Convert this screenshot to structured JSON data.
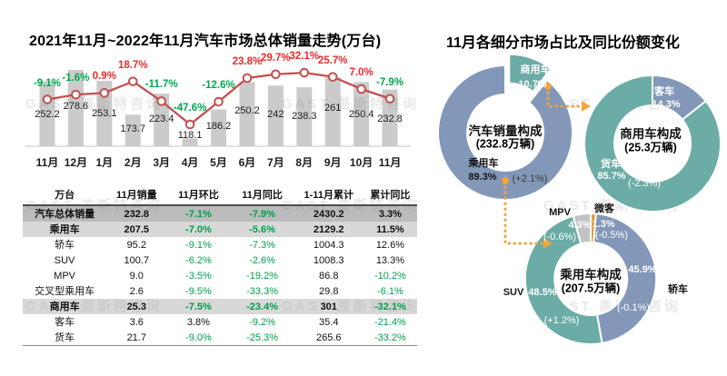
{
  "watermark": {
    "text": "GAST 盖斯特咨询"
  },
  "right_panel": {
    "title": "11月各细分市场占比及同比份额变化"
  },
  "colors": {
    "bar": "#CBCBCB",
    "line": "#C4504E",
    "pos": "#EA2B2B",
    "neg": "#00A84F",
    "table_green": "#00A04A",
    "table_text": "#111111",
    "blue": "#8397B8",
    "teal": "#6BACA6",
    "gray": "#C3C3C3",
    "orange": "#DFA13C",
    "arrow": "#F2A43C",
    "red_text": "#E00000",
    "axis": "#C5C5C5"
  },
  "chart_data": [
    {
      "type": "bar",
      "title": "2021年11月~2022年11月汽车市场总体销量走势(万台)",
      "categories": [
        "11月",
        "12月",
        "1月",
        "2月",
        "3月",
        "4月",
        "5月",
        "6月",
        "7月",
        "8月",
        "9月",
        "10月",
        "11月"
      ],
      "series": [
        {
          "name": "月度销量(万台)",
          "type": "bar",
          "values": [
            252.2,
            278.6,
            253.1,
            173.7,
            223.4,
            118.1,
            186.2,
            250.2,
            242,
            238.3,
            261,
            250.4,
            232.8
          ],
          "labels": [
            "252.2",
            "278.6",
            "253.1",
            "173.7",
            "223.4",
            "118.1",
            "186.2",
            "250.2",
            "242",
            "238.3",
            "261",
            "250.4",
            "232.8"
          ]
        },
        {
          "name": "同比增速",
          "type": "line",
          "values": [
            -9.1,
            -1.6,
            0.9,
            18.7,
            -11.7,
            -47.6,
            -12.6,
            23.8,
            29.7,
            32.1,
            25.7,
            7.0,
            -7.9
          ],
          "labels": [
            "-9.1%",
            "-1.6%",
            "0.9%",
            "18.7%",
            "-11.7%",
            "-47.6%",
            "-12.6%",
            "23.8%",
            "29.7%",
            "32.1%",
            "25.7%",
            "7.0%",
            "-7.9%"
          ]
        }
      ],
      "ylim_bar": [
        100,
        330
      ],
      "grid": false,
      "legend": "none"
    },
    {
      "type": "pie",
      "title": "汽车销量构成",
      "subtitle": "(232.8万辆)",
      "slices": [
        {
          "label": "商用车",
          "value": 10.7,
          "pct": "10.7%",
          "color": "teal"
        },
        {
          "label": "乘用车",
          "value": 89.3,
          "pct": "89.3%",
          "delta": "(+2.1%)",
          "color": "blue"
        }
      ]
    },
    {
      "type": "pie",
      "title": "商用车构成",
      "subtitle": "(25.3万辆)",
      "slices": [
        {
          "label": "客车",
          "value": 14.3,
          "pct": "14.3%",
          "color": "blue"
        },
        {
          "label": "货车",
          "value": 85.7,
          "pct": "85.7%",
          "delta": "(-2.3%)",
          "color": "teal"
        }
      ]
    },
    {
      "type": "pie",
      "title": "乘用车构成",
      "subtitle": "(207.5万辆)",
      "slices": [
        {
          "label": "微客",
          "value": 1.3,
          "pct": "1.3%",
          "delta": "(-0.5%)",
          "color": "orange"
        },
        {
          "label": "轿车",
          "value": 45.9,
          "pct": "45.9%",
          "delta": "(-0.1%)",
          "color": "blue"
        },
        {
          "label": "SUV",
          "value": 48.5,
          "pct": "48.5%",
          "delta": "(+1.2%)",
          "color": "teal"
        },
        {
          "label": "MPV",
          "value": 4.3,
          "pct": "4.3%",
          "delta": "(-0.6%)",
          "color": "gray"
        }
      ]
    },
    {
      "type": "table",
      "headers": [
        "万台",
        "11月销量",
        "11月环比",
        "11月同比",
        "1-11月累计",
        "累计同比"
      ],
      "rows": [
        {
          "style": "dark",
          "bold": true,
          "cells": [
            "汽车总体销量",
            "232.8",
            "-7.1%",
            "-7.9%",
            "2430.2",
            "3.3%"
          ]
        },
        {
          "style": "light",
          "bold": true,
          "cells": [
            "乘用车",
            "207.5",
            "-7.0%",
            "-5.6%",
            "2129.2",
            "11.5%"
          ]
        },
        {
          "style": null,
          "bold": false,
          "cells": [
            "轿车",
            "95.2",
            "-9.1%",
            "-7.3%",
            "1004.3",
            "12.6%"
          ]
        },
        {
          "style": null,
          "bold": false,
          "cells": [
            "SUV",
            "100.7",
            "-6.2%",
            "-2.6%",
            "1008.3",
            "13.3%"
          ]
        },
        {
          "style": null,
          "bold": false,
          "cells": [
            "MPV",
            "9.0",
            "-3.5%",
            "-19.2%",
            "86.8",
            "-10.2%"
          ]
        },
        {
          "style": null,
          "bold": false,
          "cells": [
            "交叉型乘用车",
            "2.6",
            "-9.5%",
            "-33.3%",
            "29.8",
            "-6.1%"
          ]
        },
        {
          "style": "light",
          "bold": true,
          "cells": [
            "商用车",
            "25.3",
            "-7.5%",
            "-23.4%",
            "301",
            "-32.1%"
          ]
        },
        {
          "style": null,
          "bold": false,
          "cells": [
            "客车",
            "3.6",
            "3.8%",
            "-9.2%",
            "35.4",
            "-21.4%"
          ]
        },
        {
          "style": null,
          "bold": false,
          "cells": [
            "货车",
            "21.7",
            "-9.0%",
            "-25.3%",
            "265.6",
            "-33.2%"
          ]
        }
      ]
    }
  ]
}
